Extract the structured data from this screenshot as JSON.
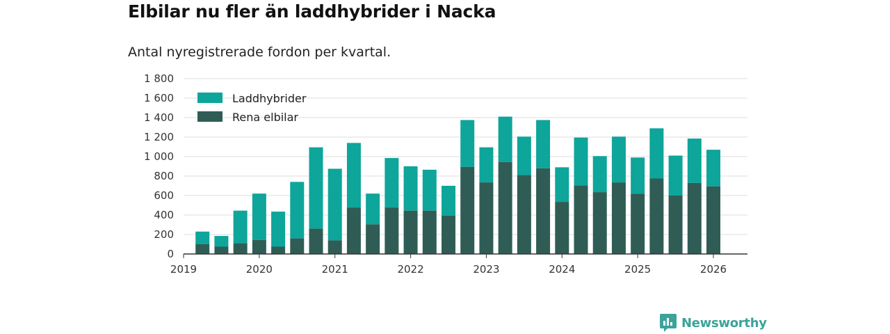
{
  "title": "Elbilar nu fler än laddhybrider i Nacka",
  "subtitle": "Antal nyregistrerade fordon per kvartal.",
  "brand": {
    "name": "Newsworthy",
    "icon": "newsworthy-logo-icon",
    "color": "#3aa39a"
  },
  "colors": {
    "phev": "#0ea59b",
    "bev": "#2f5d55",
    "grid": "#dddddd",
    "axis": "#333333"
  },
  "chart_data": {
    "type": "bar",
    "stacked": true,
    "title": "Elbilar nu fler än laddhybrider i Nacka",
    "subtitle": "Antal nyregistrerade fordon per kvartal.",
    "xlabel": "",
    "ylabel": "",
    "ylim": [
      0,
      1800
    ],
    "yticks": [
      0,
      200,
      400,
      600,
      800,
      1000,
      1200,
      1400,
      1600,
      1800
    ],
    "ytick_labels": [
      "0",
      "200",
      "400",
      "600",
      "800",
      "1 000",
      "1 200",
      "1 400",
      "1 600",
      "1 800"
    ],
    "xticks": [
      2019,
      2020,
      2021,
      2022,
      2023,
      2024,
      2025,
      2026
    ],
    "xlim": [
      2019.0,
      2026.45
    ],
    "legend_position": "top-left",
    "categories": [
      "2019 Q2",
      "2019 Q3",
      "2019 Q4",
      "2020 Q1",
      "2020 Q2",
      "2020 Q3",
      "2020 Q4",
      "2021 Q1",
      "2021 Q2",
      "2021 Q3",
      "2021 Q4",
      "2022 Q1",
      "2022 Q2",
      "2022 Q3",
      "2022 Q4",
      "2023 Q1",
      "2023 Q2",
      "2023 Q3",
      "2023 Q4",
      "2024 Q1",
      "2024 Q2",
      "2024 Q3",
      "2024 Q4",
      "2025 Q1",
      "2025 Q2",
      "2025 Q3",
      "2025 Q4",
      "2026 Q1"
    ],
    "x": [
      2019.25,
      2019.5,
      2019.75,
      2020.0,
      2020.25,
      2020.5,
      2020.75,
      2021.0,
      2021.25,
      2021.5,
      2021.75,
      2022.0,
      2022.25,
      2022.5,
      2022.75,
      2023.0,
      2023.25,
      2023.5,
      2023.75,
      2024.0,
      2024.25,
      2024.5,
      2024.75,
      2025.0,
      2025.25,
      2025.5,
      2025.75,
      2026.0
    ],
    "series": [
      {
        "name": "Rena elbilar",
        "color": "#2f5d55",
        "values": [
          100,
          75,
          110,
          145,
          75,
          160,
          260,
          140,
          475,
          305,
          475,
          445,
          445,
          395,
          895,
          735,
          945,
          810,
          880,
          535,
          705,
          635,
          735,
          620,
          775,
          600,
          730,
          695
        ]
      },
      {
        "name": "Laddhybrider",
        "color": "#0ea59b",
        "values": [
          130,
          110,
          335,
          475,
          360,
          580,
          835,
          735,
          665,
          315,
          510,
          455,
          420,
          305,
          480,
          360,
          465,
          395,
          495,
          355,
          490,
          370,
          470,
          370,
          515,
          410,
          455,
          375
        ]
      }
    ],
    "legend": [
      "Laddhybrider",
      "Rena elbilar"
    ]
  }
}
